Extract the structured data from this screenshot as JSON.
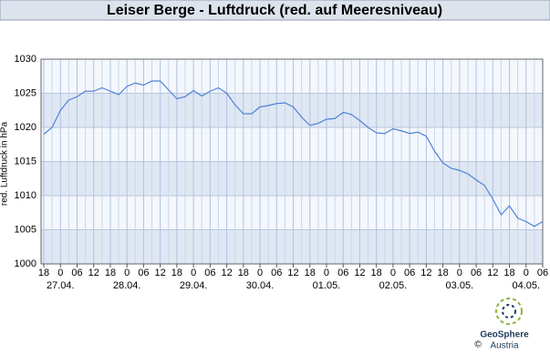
{
  "chart_data": {
    "type": "line",
    "title": "Leiser Berge - Luftdruck (red. auf Meeresniveau)",
    "y_label": "red. Luftdruck in hPa",
    "x": [
      0,
      3,
      6,
      9,
      12,
      15,
      18,
      21,
      24,
      27,
      30,
      33,
      36,
      39,
      42,
      45,
      48,
      51,
      54,
      57,
      60,
      63,
      66,
      69,
      72,
      75,
      78,
      81,
      84,
      87,
      90,
      93,
      96,
      99,
      102,
      105,
      108,
      111,
      114,
      117,
      120,
      123,
      126,
      129,
      132,
      135,
      138,
      141,
      144,
      147,
      150,
      153,
      156,
      159,
      162,
      165,
      168,
      171,
      174,
      177,
      180
    ],
    "series": [
      {
        "color": "#4f83d6",
        "values": [
          1019,
          1020,
          1022.5,
          1024,
          1024.5,
          1025.3,
          1025.3,
          1025.8,
          1025.3,
          1024.8,
          1026,
          1026.5,
          1026.2,
          1026.8,
          1026.8,
          1025.5,
          1024.2,
          1024.5,
          1025.4,
          1024.6,
          1025.3,
          1025.8,
          1025,
          1023.3,
          1022,
          1022,
          1023,
          1023.2,
          1023.5,
          1023.6,
          1023,
          1021.5,
          1020.3,
          1020.6,
          1021.2,
          1021.3,
          1022.2,
          1021.9,
          1021,
          1020,
          1019.2,
          1019.1,
          1019.8,
          1019.5,
          1019.1,
          1019.3,
          1018.7,
          1016.5,
          1014.8,
          1014,
          1013.7,
          1013.2,
          1012.3,
          1011.5,
          1009.5,
          1007.2,
          1008.5,
          1006.7,
          1006.2,
          1005.5,
          1006.2
        ]
      }
    ],
    "xlim": [
      -1,
      180
    ],
    "xticks": [
      {
        "value": 0,
        "label": "18"
      },
      {
        "value": 6,
        "label": "0"
      },
      {
        "value": 12,
        "label": "06"
      },
      {
        "value": 18,
        "label": "12"
      },
      {
        "value": 24,
        "label": "18"
      },
      {
        "value": 30,
        "label": "0"
      },
      {
        "value": 36,
        "label": "06"
      },
      {
        "value": 42,
        "label": "12"
      },
      {
        "value": 48,
        "label": "18"
      },
      {
        "value": 54,
        "label": "0"
      },
      {
        "value": 60,
        "label": "06"
      },
      {
        "value": 66,
        "label": "12"
      },
      {
        "value": 72,
        "label": "18"
      },
      {
        "value": 78,
        "label": "0"
      },
      {
        "value": 84,
        "label": "06"
      },
      {
        "value": 90,
        "label": "12"
      },
      {
        "value": 96,
        "label": "18"
      },
      {
        "value": 102,
        "label": "0"
      },
      {
        "value": 108,
        "label": "06"
      },
      {
        "value": 114,
        "label": "12"
      },
      {
        "value": 120,
        "label": "18"
      },
      {
        "value": 126,
        "label": "0"
      },
      {
        "value": 132,
        "label": "06"
      },
      {
        "value": 138,
        "label": "12"
      },
      {
        "value": 144,
        "label": "18"
      },
      {
        "value": 150,
        "label": "0"
      },
      {
        "value": 156,
        "label": "06"
      },
      {
        "value": 162,
        "label": "12"
      },
      {
        "value": 168,
        "label": "18"
      },
      {
        "value": 174,
        "label": "0"
      },
      {
        "value": 180,
        "label": "06"
      }
    ],
    "date_ticks": [
      {
        "value": 6,
        "label": "27.04."
      },
      {
        "value": 30,
        "label": "28.04."
      },
      {
        "value": 54,
        "label": "29.04."
      },
      {
        "value": 78,
        "label": "30.04."
      },
      {
        "value": 102,
        "label": "01.05."
      },
      {
        "value": 126,
        "label": "02.05."
      },
      {
        "value": 150,
        "label": "03.05."
      },
      {
        "value": 174,
        "label": "04.05."
      }
    ],
    "ylim": [
      1000,
      1030
    ],
    "yticks": [
      1000,
      1005,
      1010,
      1015,
      1020,
      1025,
      1030
    ],
    "band_colors": [
      "#f4f7fc",
      "#dfe7f3"
    ],
    "grid": true
  },
  "footer": {
    "copyright": "©",
    "brand": "GeoSphere",
    "brand_sub": "Austria"
  }
}
